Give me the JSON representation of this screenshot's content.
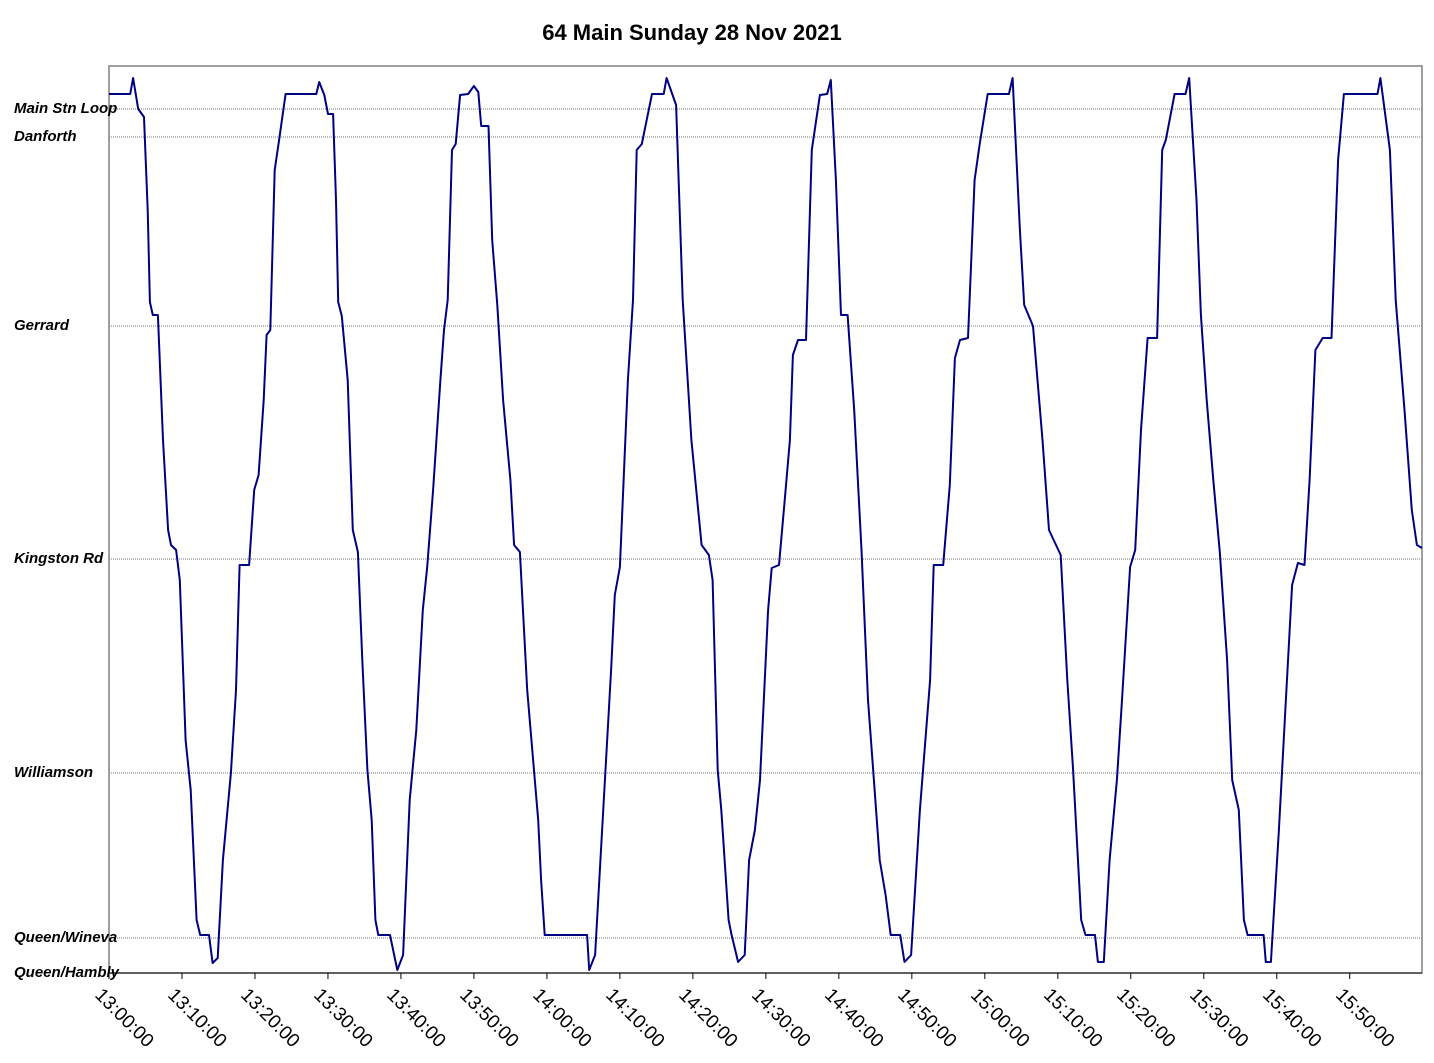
{
  "chart_data": {
    "type": "line",
    "title": "64 Main Sunday 28 Nov 2021",
    "color": "#000080",
    "grid": true,
    "xlim": [
      "13:00:00",
      "15:59:54"
    ],
    "xticks": [
      "13:00:00",
      "13:10:00",
      "13:20:00",
      "13:30:00",
      "13:40:00",
      "13:50:00",
      "14:00:00",
      "14:10:00",
      "14:20:00",
      "14:30:00",
      "14:40:00",
      "14:50:00",
      "15:00:00",
      "15:10:00",
      "15:20:00",
      "15:30:00",
      "15:40:00",
      "15:50:00"
    ],
    "ylim": [
      0,
      9.07
    ],
    "yticks": [
      {
        "value": 0,
        "label": "Queen/Hambly"
      },
      {
        "value": 0.35,
        "label": "Queen/Wineva"
      },
      {
        "value": 2.0,
        "label": "Williamson"
      },
      {
        "value": 4.14,
        "label": "Kingston Rd"
      },
      {
        "value": 6.47,
        "label": "Gerrard"
      },
      {
        "value": 8.36,
        "label": "Danforth"
      },
      {
        "value": 8.64,
        "label": "Main Stn Loop"
      }
    ],
    "x": [
      "13:00:00",
      "13:02:54",
      "13:03:18",
      "13:04:00",
      "13:04:48",
      "13:05:18",
      "13:05:36",
      "13:06:00",
      "13:06:42",
      "13:07:24",
      "13:08:06",
      "13:08:30",
      "13:09:12",
      "13:09:42",
      "13:10:30",
      "13:11:12",
      "13:12:00",
      "13:12:30",
      "13:13:42",
      "13:14:12",
      "13:14:54",
      "13:15:36",
      "13:16:42",
      "13:17:24",
      "13:17:54",
      "13:19:12",
      "13:19:54",
      "13:20:30",
      "13:21:12",
      "13:21:36",
      "13:22:06",
      "13:22:42",
      "13:23:18",
      "13:24:12",
      "13:28:24",
      "13:28:48",
      "13:29:30",
      "13:30:00",
      "13:30:42",
      "13:31:06",
      "13:31:24",
      "13:31:54",
      "13:32:42",
      "13:33:24",
      "13:34:06",
      "13:34:42",
      "13:35:24",
      "13:36:00",
      "13:36:30",
      "13:36:54",
      "13:38:30",
      "13:39:30",
      "13:40:18",
      "13:41:12",
      "13:42:06",
      "13:43:00",
      "13:43:36",
      "13:44:24",
      "13:45:24",
      "13:45:54",
      "13:46:24",
      "13:47:00",
      "13:47:30",
      "13:48:06",
      "13:49:12",
      "13:50:00",
      "13:50:36",
      "13:51:00",
      "13:52:00",
      "13:52:30",
      "13:53:12",
      "13:54:00",
      "13:55:00",
      "13:55:30",
      "13:56:18",
      "13:57:18",
      "13:58:48",
      "13:59:12",
      "13:59:42",
      "14:05:30",
      "14:05:48",
      "14:06:36",
      "14:07:48",
      "14:08:48",
      "14:09:18",
      "14:10:00",
      "14:11:06",
      "14:11:48",
      "14:12:18",
      "14:13:00",
      "14:14:24",
      "14:16:00",
      "14:16:24",
      "14:17:42",
      "14:18:36",
      "14:19:48",
      "14:21:12",
      "14:22:12",
      "14:22:42",
      "14:23:24",
      "14:23:54",
      "14:24:54",
      "14:25:18",
      "14:26:12",
      "14:27:06",
      "14:27:42",
      "14:28:30",
      "14:29:12",
      "14:30:18",
      "14:30:48",
      "14:31:48",
      "14:32:42",
      "14:33:18",
      "14:33:42",
      "14:34:24",
      "14:35:30",
      "14:36:18",
      "14:37:24",
      "14:38:24",
      "14:38:54",
      "14:39:36",
      "14:40:18",
      "14:41:12",
      "14:42:06",
      "14:43:06",
      "14:44:00",
      "14:44:48",
      "14:45:36",
      "14:46:24",
      "14:47:06",
      "14:48:24",
      "14:49:00",
      "14:49:54",
      "14:51:06",
      "14:52:30",
      "14:53:00",
      "14:54:18",
      "14:55:12",
      "14:55:54",
      "14:56:36",
      "14:57:42",
      "14:58:36",
      "14:59:18",
      "15:00:24",
      "15:03:18",
      "15:03:48",
      "15:04:48",
      "15:05:24",
      "15:06:36",
      "15:07:54",
      "15:08:48",
      "15:10:24",
      "15:11:18",
      "15:12:06",
      "15:13:12",
      "15:13:48",
      "15:15:06",
      "15:15:30",
      "15:16:18",
      "15:17:06",
      "15:18:06",
      "15:18:48",
      "15:19:54",
      "15:20:36",
      "15:21:24",
      "15:22:18",
      "15:23:36",
      "15:24:18",
      "15:24:48",
      "15:26:00",
      "15:27:30",
      "15:28:00",
      "15:29:00",
      "15:29:36",
      "15:30:24",
      "15:31:18",
      "15:32:12",
      "15:33:12",
      "15:33:54",
      "15:34:48",
      "15:35:30",
      "15:36:00",
      "15:38:12",
      "15:38:30",
      "15:39:12",
      "15:40:18",
      "15:41:06",
      "15:42:06",
      "15:42:54",
      "15:43:48",
      "15:44:30",
      "15:45:18",
      "15:46:18",
      "15:47:30",
      "15:48:24",
      "15:49:12",
      "15:53:48",
      "15:54:12",
      "15:55:30",
      "15:56:18",
      "15:57:30",
      "15:58:30",
      "15:59:12",
      "15:59:54"
    ],
    "values": [
      8.79,
      8.79,
      8.95,
      8.64,
      8.56,
      7.63,
      6.71,
      6.58,
      6.58,
      5.33,
      4.43,
      4.28,
      4.23,
      3.93,
      2.33,
      1.83,
      0.53,
      0.38,
      0.38,
      0.1,
      0.15,
      1.13,
      2.0,
      2.83,
      4.08,
      4.08,
      4.83,
      4.98,
      5.73,
      6.38,
      6.43,
      8.03,
      8.33,
      8.79,
      8.79,
      8.91,
      8.78,
      8.59,
      8.59,
      7.73,
      6.71,
      6.57,
      5.93,
      4.43,
      4.21,
      3.13,
      2.03,
      1.53,
      0.53,
      0.38,
      0.38,
      0.03,
      0.18,
      1.73,
      2.43,
      3.63,
      4.06,
      4.83,
      5.93,
      6.43,
      6.73,
      8.23,
      8.29,
      8.78,
      8.79,
      8.87,
      8.81,
      8.47,
      8.47,
      7.33,
      6.68,
      5.73,
      4.93,
      4.28,
      4.21,
      2.83,
      1.53,
      0.93,
      0.38,
      0.38,
      0.03,
      0.18,
      1.73,
      3.03,
      3.78,
      4.06,
      5.93,
      6.73,
      8.23,
      8.29,
      8.79,
      8.79,
      8.95,
      8.68,
      6.73,
      5.33,
      4.28,
      4.18,
      3.93,
      2.03,
      1.63,
      0.53,
      0.38,
      0.11,
      0.18,
      1.13,
      1.43,
      1.93,
      3.63,
      4.05,
      4.08,
      4.83,
      5.33,
      6.18,
      6.33,
      6.33,
      8.23,
      8.78,
      8.79,
      8.93,
      7.93,
      6.58,
      6.58,
      5.63,
      4.23,
      2.73,
      1.93,
      1.13,
      0.78,
      0.38,
      0.38,
      0.11,
      0.18,
      1.63,
      2.93,
      4.08,
      4.08,
      4.88,
      6.15,
      6.33,
      6.35,
      7.93,
      8.29,
      8.79,
      8.79,
      8.95,
      7.43,
      6.68,
      6.47,
      5.33,
      4.43,
      4.18,
      2.93,
      2.03,
      0.53,
      0.38,
      0.38,
      0.11,
      0.11,
      1.13,
      1.93,
      2.73,
      4.06,
      4.23,
      5.43,
      6.35,
      6.35,
      8.23,
      8.33,
      8.79,
      8.79,
      8.95,
      7.73,
      6.58,
      5.73,
      4.93,
      4.21,
      3.13,
      1.93,
      1.63,
      0.53,
      0.38,
      0.38,
      0.11,
      0.11,
      1.43,
      2.53,
      3.88,
      4.1,
      4.08,
      4.93,
      6.23,
      6.35,
      6.35,
      8.13,
      8.79,
      8.79,
      8.95,
      8.23,
      6.73,
      5.63,
      4.63,
      4.28,
      4.25
    ]
  }
}
